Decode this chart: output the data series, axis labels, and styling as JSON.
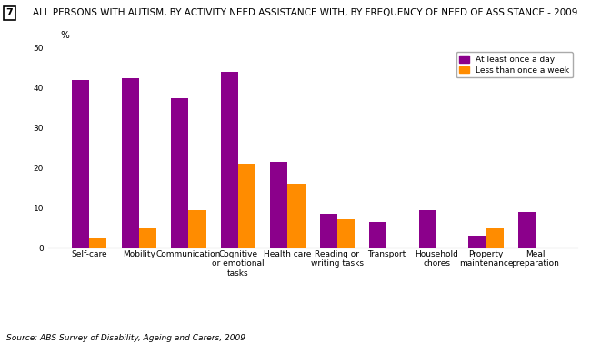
{
  "categories": [
    "Self-care",
    "Mobility",
    "Communication",
    "Cognitive\nor emotional\ntasks",
    "Health care",
    "Reading or\nwriting tasks",
    "Transport",
    "Household\nchores",
    "Property\nmaintenance",
    "Meal\npreparation"
  ],
  "at_least_once_day": [
    42,
    42.5,
    37.5,
    44,
    21.5,
    8.5,
    6.5,
    9.5,
    3,
    9
  ],
  "less_than_once_week": [
    2.5,
    5,
    9.5,
    21,
    16,
    7,
    0,
    0,
    5,
    0
  ],
  "color_purple": "#8B008B",
  "color_orange": "#FF8C00",
  "title": "ALL PERSONS WITH AUTISM, BY ACTIVITY NEED ASSISTANCE WITH, BY FREQUENCY OF NEED OF ASSISTANCE - 2009",
  "chart_number": "7",
  "ylabel": "%",
  "ylim": [
    0,
    50
  ],
  "yticks": [
    0,
    10,
    20,
    30,
    40,
    50
  ],
  "legend_labels": [
    "At least once a day",
    "Less than once a week"
  ],
  "source": "Source: ABS Survey of Disability, Ageing and Carers, 2009",
  "title_fontsize": 7.5,
  "tick_fontsize": 6.5,
  "source_fontsize": 6.5,
  "bar_width": 0.35,
  "background_color": "#FFFFFF",
  "grid_color": "#FFFFFF",
  "chart_bg_color": "#FFFFFF"
}
